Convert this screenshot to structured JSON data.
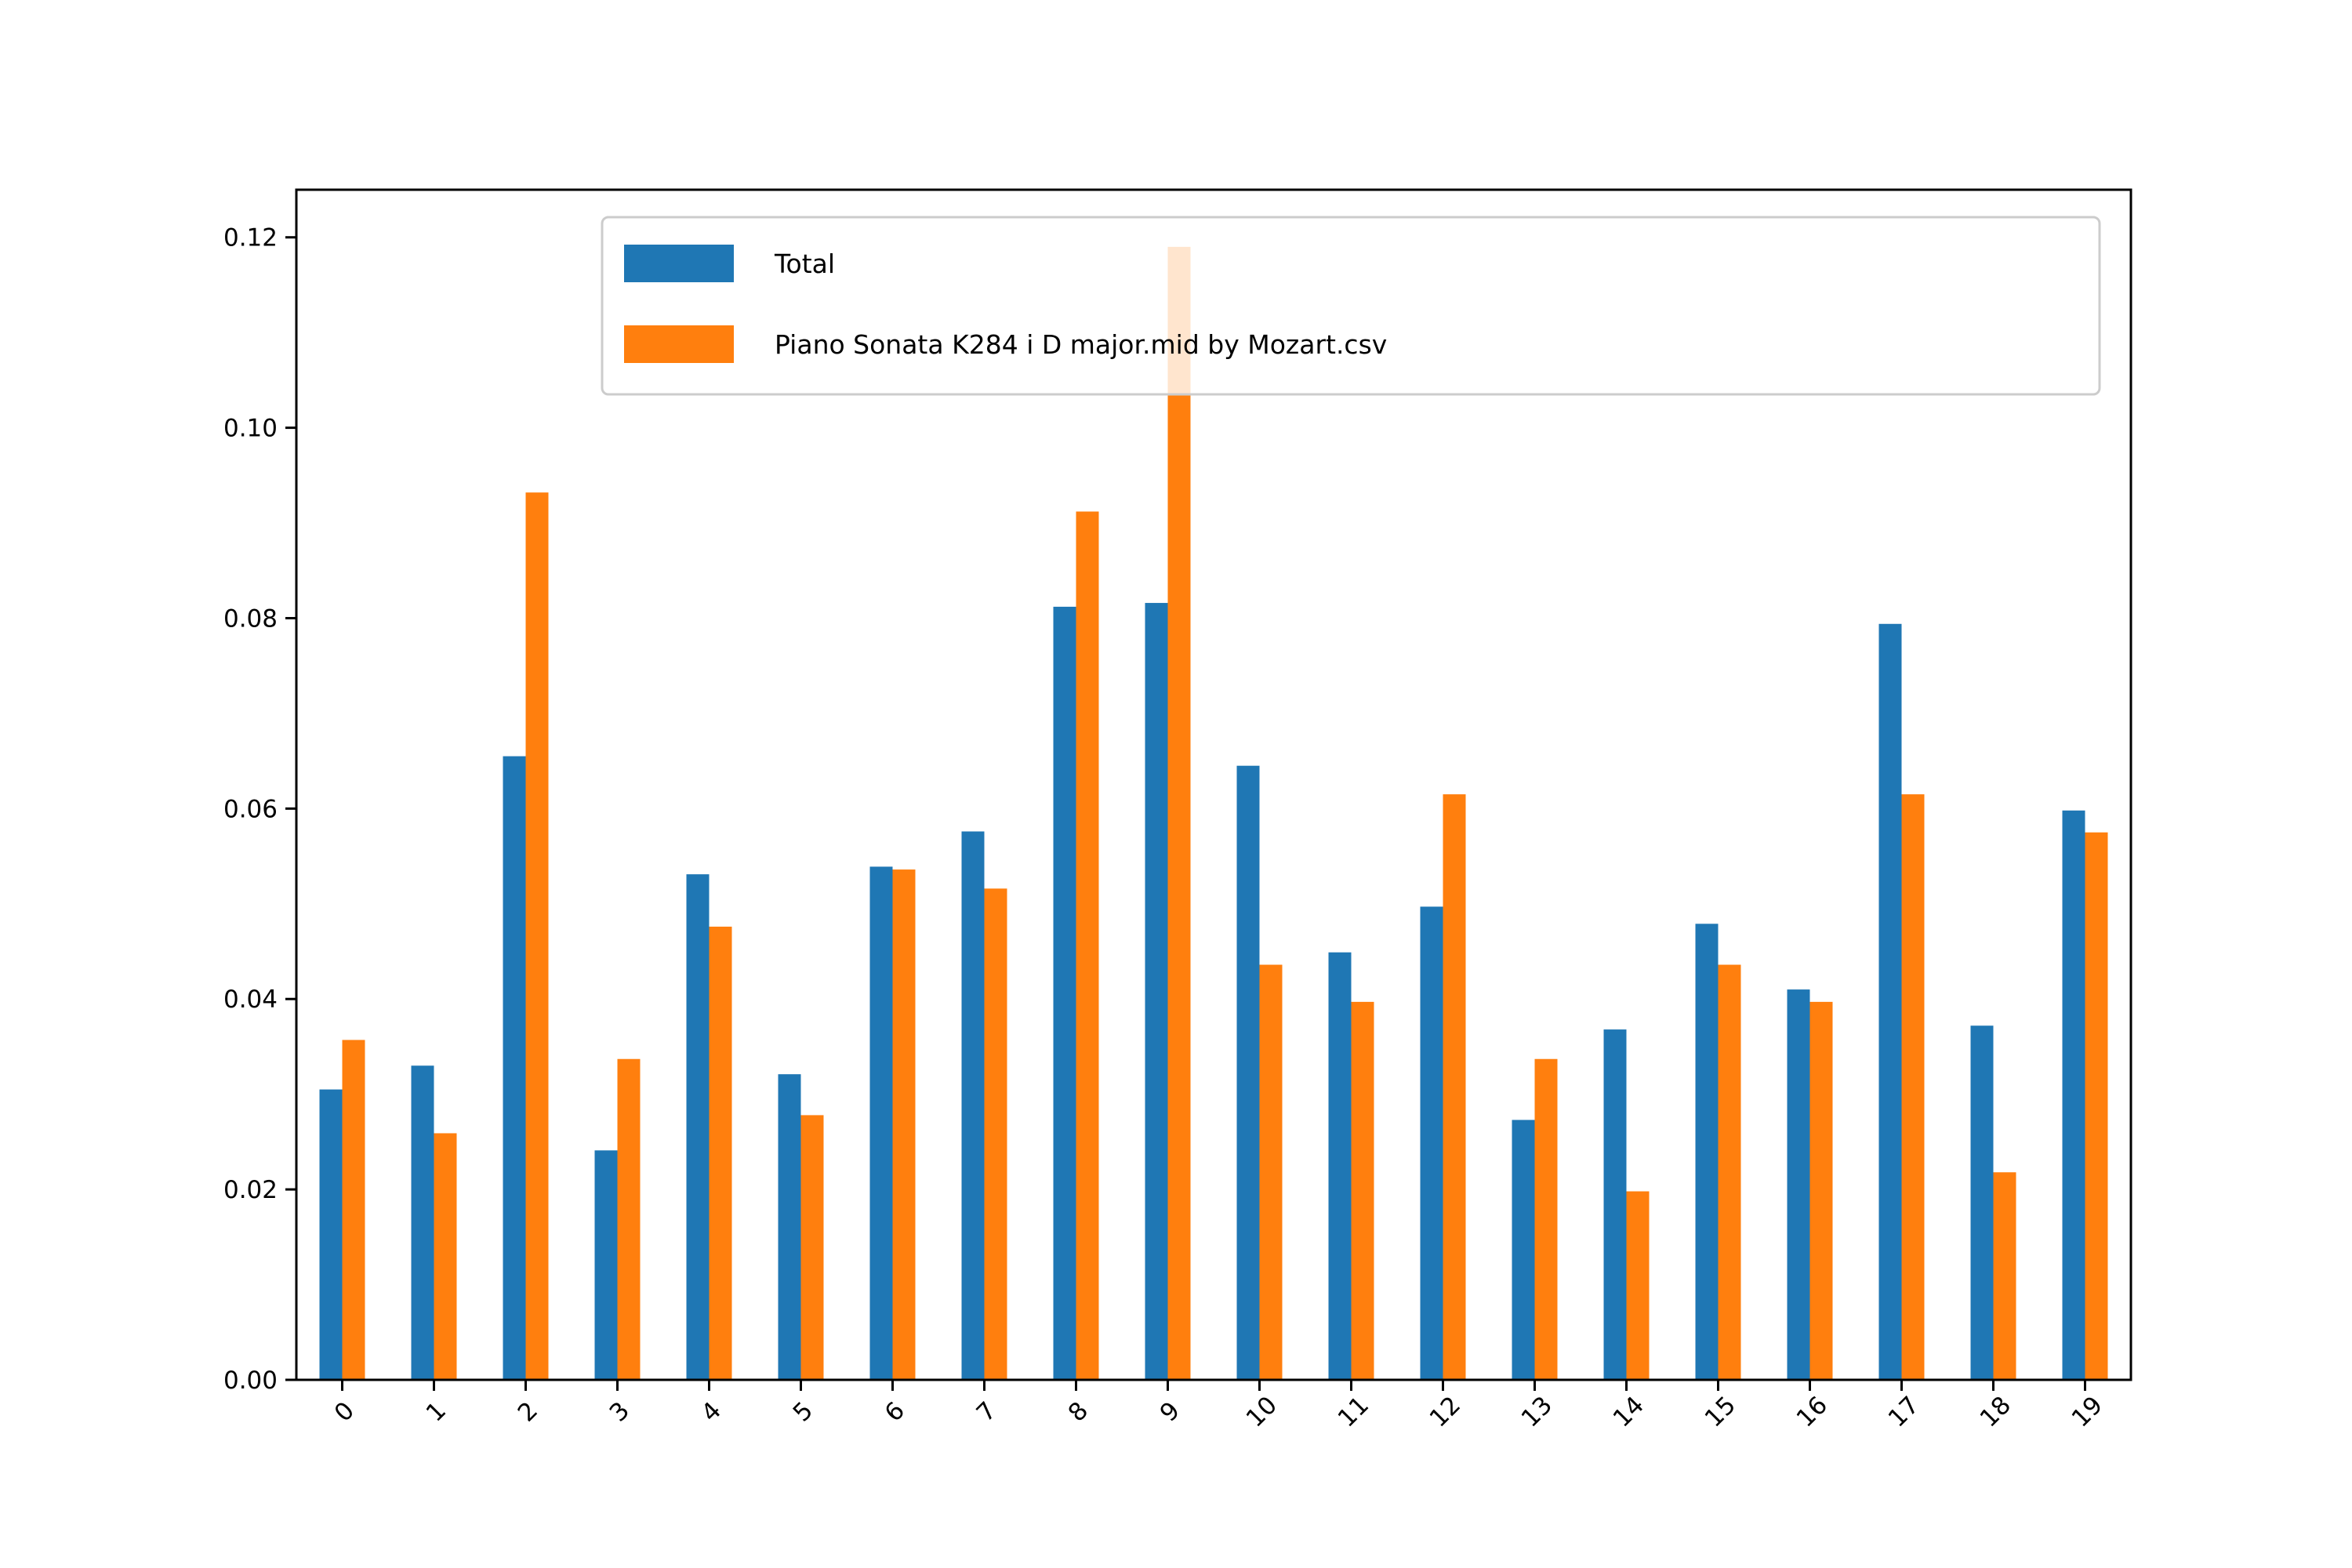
{
  "chart_data": {
    "type": "bar",
    "categories": [
      "0",
      "1",
      "2",
      "3",
      "4",
      "5",
      "6",
      "7",
      "8",
      "9",
      "10",
      "11",
      "12",
      "13",
      "14",
      "15",
      "16",
      "17",
      "18",
      "19"
    ],
    "series": [
      {
        "name": "Total",
        "color": "#1f77b4",
        "values": [
          0.0305,
          0.033,
          0.0655,
          0.0241,
          0.0531,
          0.0321,
          0.0539,
          0.0576,
          0.0812,
          0.0816,
          0.0645,
          0.0449,
          0.0497,
          0.0273,
          0.0368,
          0.0479,
          0.041,
          0.0794,
          0.0372,
          0.0598
        ]
      },
      {
        "name": "Piano Sonata K284 i D major.mid by Mozart.csv",
        "color": "#ff7f0e",
        "values": [
          0.0357,
          0.0259,
          0.0932,
          0.0337,
          0.0476,
          0.0278,
          0.0536,
          0.0516,
          0.0912,
          0.119,
          0.0436,
          0.0397,
          0.0615,
          0.0337,
          0.0198,
          0.0436,
          0.0397,
          0.0615,
          0.0218,
          0.0575
        ]
      }
    ],
    "ylim": [
      0,
      0.125
    ],
    "yticks": [
      "0.00",
      "0.02",
      "0.04",
      "0.06",
      "0.08",
      "0.10",
      "0.12"
    ],
    "legend_position": "top-center",
    "grid": false
  }
}
